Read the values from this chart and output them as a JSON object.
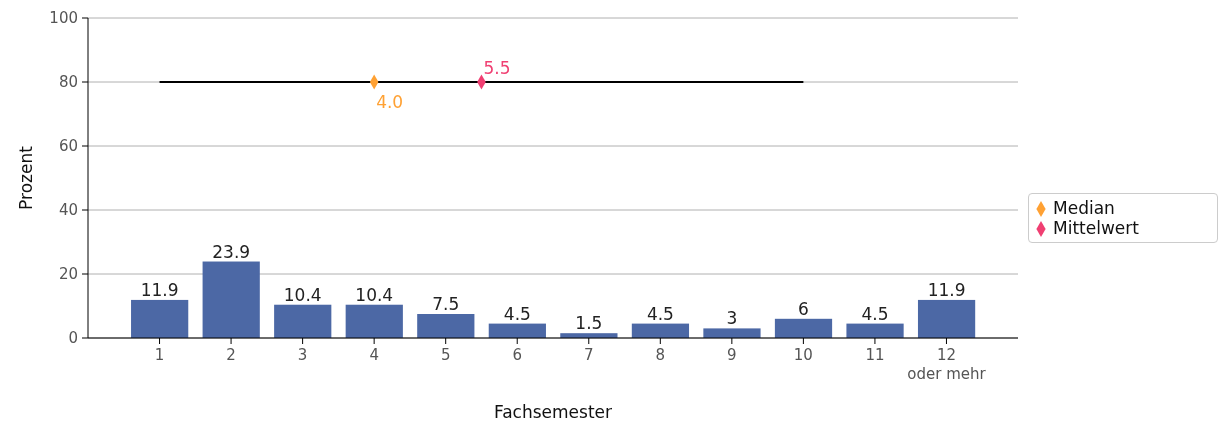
{
  "chart_data": {
    "type": "bar",
    "xlabel": "Fachsemester",
    "ylabel": "Prozent",
    "x": [
      1,
      2,
      3,
      4,
      5,
      6,
      7,
      8,
      9,
      10,
      11,
      12
    ],
    "xlim": [
      0,
      13
    ],
    "xticks": [
      1,
      2,
      3,
      4,
      5,
      6,
      7,
      8,
      9,
      10,
      11,
      {
        "value": 12,
        "label": "12\noder mehr"
      }
    ],
    "ylim": [
      0,
      100
    ],
    "yticks": [
      0,
      20,
      40,
      60,
      80,
      100
    ],
    "grid": "y",
    "legend": "right",
    "series": [
      {
        "color": "#4c68a5",
        "values": [
          11.9,
          23.9,
          10.4,
          10.4,
          7.5,
          4.5,
          1.5,
          4.5,
          3,
          6,
          4.5,
          11.9
        ],
        "value_labels": [
          "11.9",
          "23.9",
          "10.4",
          "10.4",
          "7.5",
          "4.5",
          "1.5",
          "4.5",
          "3",
          "6",
          "4.5",
          "11.9"
        ]
      },
      {
        "type": "line",
        "color": "#000000",
        "x": [
          1,
          10
        ],
        "values": [
          80,
          80
        ],
        "marker": "none"
      },
      {
        "type": "scatter",
        "name": "Median",
        "color": "#ffa133",
        "x": [
          4
        ],
        "values": [
          80
        ],
        "marker": "diamond"
      },
      {
        "type": "scatter",
        "name": "Mittelwert",
        "color": "#f03f72",
        "x": [
          5.5
        ],
        "values": [
          80
        ],
        "marker": "diamond"
      }
    ],
    "annotations": [
      {
        "text": "4.0",
        "x": 4,
        "y": 80
      },
      {
        "text": "5.5",
        "x": 5.5,
        "y": 80
      }
    ]
  }
}
